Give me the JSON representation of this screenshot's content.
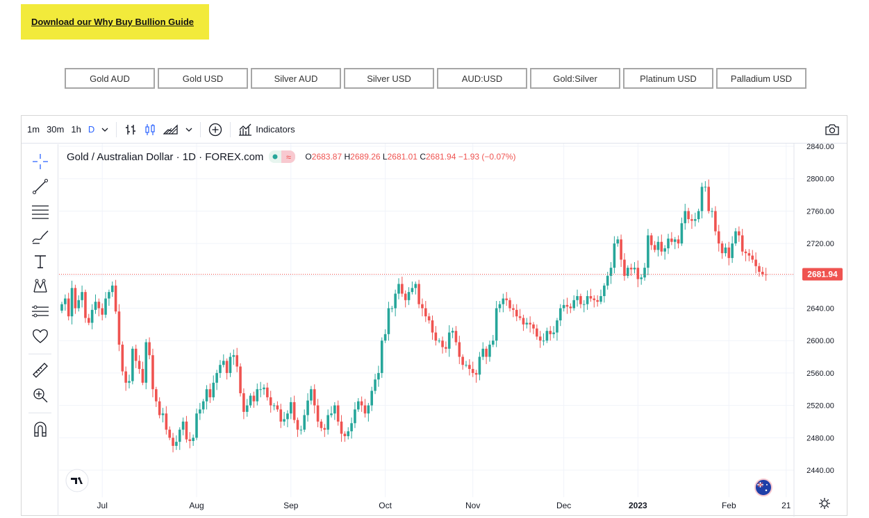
{
  "guide_link": "Download our Why Buy Bullion Guide",
  "tabs": [
    "Gold AUD",
    "Gold USD",
    "Silver AUD",
    "Silver USD",
    "AUD:USD",
    "Gold:Silver",
    "Platinum USD",
    "Palladium USD"
  ],
  "toolbar": {
    "intervals": [
      "1m",
      "30m",
      "1h",
      "D"
    ],
    "active_interval": "D",
    "indicators_label": "Indicators"
  },
  "legend": {
    "symbol": "Gold / Australian Dollar · 1D · FOREX.com",
    "o_key": "O",
    "o_val": "2683.87",
    "h_key": "H",
    "h_val": "2689.26",
    "l_key": "L",
    "l_val": "2681.01",
    "c_key": "C",
    "c_val": "2681.94",
    "change": "−1.93 (−0.07%)"
  },
  "colors": {
    "up": "#26a69a",
    "down": "#ef5350",
    "guide_bg": "#f2ea3b"
  },
  "chart_data": {
    "type": "candlestick",
    "last_price": "2681.94",
    "y_ticks": [
      "2840.00",
      "2800.00",
      "2760.00",
      "2720.00",
      "2680.00",
      "2640.00",
      "2600.00",
      "2560.00",
      "2520.00",
      "2480.00",
      "2440.00"
    ],
    "x_labels": [
      "Jul",
      "Aug",
      "Sep",
      "Oct",
      "Nov",
      "Dec",
      "2023",
      "Feb",
      "21"
    ],
    "close": [
      2645,
      2652,
      2630,
      2665,
      2640,
      2650,
      2660,
      2628,
      2622,
      2638,
      2648,
      2640,
      2632,
      2652,
      2660,
      2668,
      2636,
      2595,
      2562,
      2548,
      2550,
      2590,
      2575,
      2565,
      2548,
      2598,
      2582,
      2540,
      2525,
      2508,
      2510,
      2490,
      2480,
      2470,
      2475,
      2490,
      2500,
      2478,
      2476,
      2480,
      2510,
      2515,
      2525,
      2540,
      2530,
      2548,
      2560,
      2570,
      2575,
      2560,
      2580,
      2582,
      2568,
      2535,
      2512,
      2520,
      2532,
      2525,
      2540,
      2540,
      2542,
      2530,
      2520,
      2520,
      2515,
      2500,
      2503,
      2510,
      2524,
      2502,
      2490,
      2490,
      2508,
      2526,
      2540,
      2520,
      2500,
      2492,
      2490,
      2508,
      2510,
      2520,
      2500,
      2485,
      2482,
      2488,
      2498,
      2515,
      2525,
      2520,
      2510,
      2520,
      2538,
      2552,
      2560,
      2600,
      2608,
      2640,
      2640,
      2658,
      2670,
      2658,
      2650,
      2660,
      2665,
      2670,
      2645,
      2640,
      2630,
      2625,
      2610,
      2600,
      2600,
      2592,
      2590,
      2610,
      2612,
      2598,
      2580,
      2570,
      2570,
      2565,
      2560,
      2558,
      2580,
      2590,
      2580,
      2595,
      2600,
      2640,
      2645,
      2652,
      2650,
      2640,
      2638,
      2630,
      2628,
      2620,
      2622,
      2620,
      2615,
      2605,
      2600,
      2600,
      2612,
      2608,
      2610,
      2625,
      2640,
      2644,
      2642,
      2640,
      2650,
      2655,
      2645,
      2645,
      2655,
      2652,
      2650,
      2648,
      2655,
      2668,
      2680,
      2690,
      2720,
      2725,
      2700,
      2680,
      2690,
      2688,
      2690,
      2676,
      2678,
      2690,
      2730,
      2718,
      2712,
      2722,
      2710,
      2714,
      2726,
      2722,
      2725,
      2720,
      2745,
      2760,
      2750,
      2748,
      2750,
      2760,
      2790,
      2790,
      2760,
      2760,
      2735,
      2720,
      2708,
      2715,
      2702,
      2720,
      2735,
      2730,
      2710,
      2708,
      2705,
      2700,
      2692,
      2685,
      2682,
      2681.94
    ],
    "note": "Daily OHLC values approximated from the chart; close values listed, open = previous close"
  }
}
